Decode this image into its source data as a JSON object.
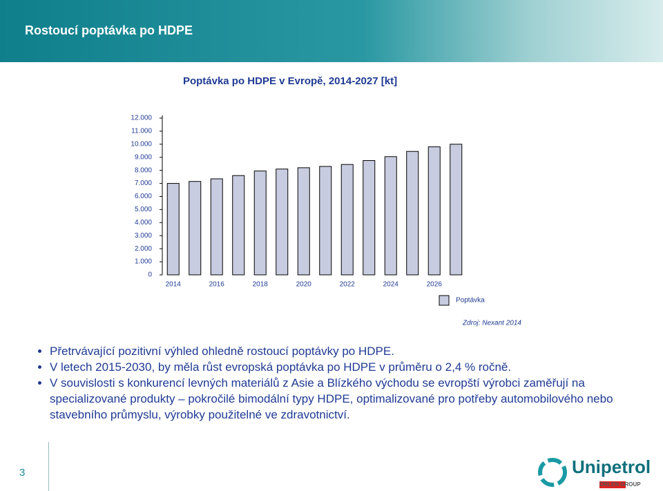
{
  "header": {
    "title": "Rostoucí poptávka po HDPE"
  },
  "chart_data": {
    "type": "bar",
    "title": "Poptávka po HDPE v Evropě, 2014-2027 [kt]",
    "categories": [
      "2014",
      null,
      "2016",
      null,
      "2018",
      null,
      "2020",
      null,
      "2022",
      null,
      "2024",
      null,
      "2026",
      null
    ],
    "series": [
      {
        "name": "Poptávka",
        "color": "#c8cce0",
        "values": [
          7000,
          7150,
          7350,
          7600,
          7950,
          8100,
          8200,
          8300,
          8450,
          8750,
          9050,
          9450,
          9800,
          10000
        ]
      }
    ],
    "ylim": [
      0,
      12000
    ],
    "yticks": [
      0,
      {
        "value": 1000,
        "label": "1.000"
      },
      {
        "value": 2000,
        "label": "2.000"
      },
      {
        "value": 3000,
        "label": "3.000"
      },
      {
        "value": 4000,
        "label": "4.000"
      },
      {
        "value": 5000,
        "label": "5.000"
      },
      {
        "value": 6000,
        "label": "6.000"
      },
      {
        "value": 7000,
        "label": "7.000"
      },
      {
        "value": 8000,
        "label": "8.000"
      },
      {
        "value": 9000,
        "label": "9.000"
      },
      {
        "value": 10000,
        "label": "10.000"
      },
      {
        "value": 11000,
        "label": "11.000"
      },
      {
        "value": 12000,
        "label": "12.000"
      }
    ],
    "grid": false,
    "legend": "bottom-right"
  },
  "source": "Zdroj: Nexant 2014",
  "bullets": [
    "Přetrvávající pozitivní výhled ohledně rostoucí poptávky po HDPE.",
    "V letech 2015-2030, by měla růst evropská poptávka po HDPE v průměru o 2,4 % ročně.",
    "V souvislosti s konkurencí levných materiálů z Asie a Blízkého východu se evropští výrobci zaměřují na specializované produkty – pokročilé bimodální typy HDPE, optimalizované pro potřeby automobilového nebo stavebního průmyslu, výrobky použitelné ve zdravotnictví."
  ],
  "page_number": "3",
  "logo": {
    "name": "Unipetrol",
    "group": "ORLEN GROUP"
  }
}
